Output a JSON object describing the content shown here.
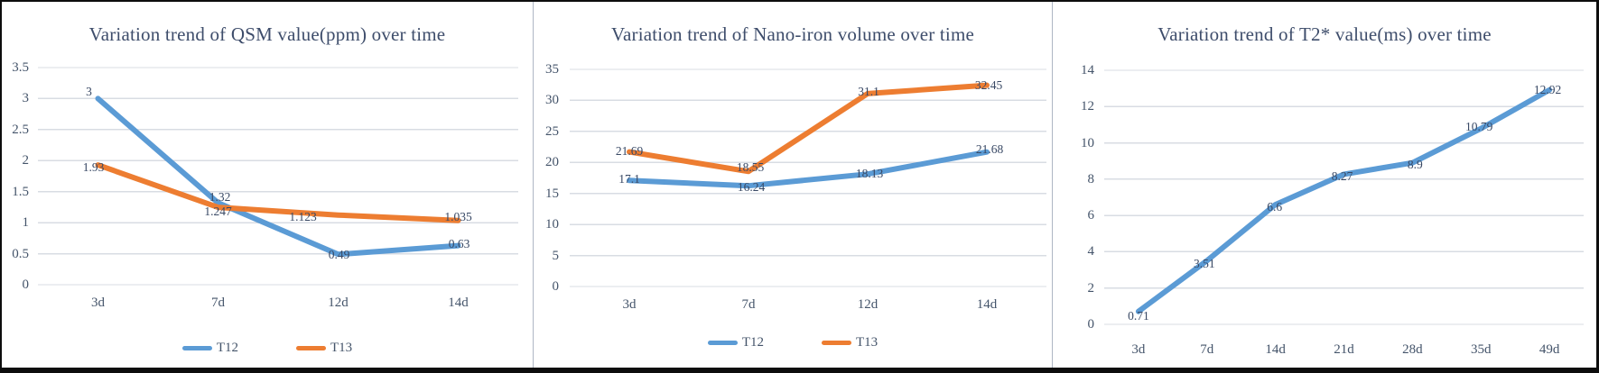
{
  "figure": {
    "background": "#ffffff",
    "border_color": "#0d0d0d",
    "divider_color": "#aeb6c4",
    "gridline_color": "#d8dce3",
    "title_color": "#3E4D6B",
    "axis_text_color": "#44546A",
    "data_label_color": "#394965",
    "series_blue": "#5B9BD5",
    "series_orange": "#ED7D31"
  },
  "chart_data": [
    {
      "type": "line",
      "title": "Variation trend of QSM value(ppm) over time",
      "categories": [
        "3d",
        "7d",
        "12d",
        "14d"
      ],
      "xlabel": "",
      "ylabel": "",
      "ylim": [
        0,
        3.5
      ],
      "y_step": 0.5,
      "y_tick_labels": [
        "0",
        "0.5",
        "1",
        "1.5",
        "2",
        "2.5",
        "3",
        "3.5"
      ],
      "grid": true,
      "legend_position": "bottom",
      "series": [
        {
          "name": "T12",
          "color": "#5B9BD5",
          "values": [
            3,
            1.32,
            0.49,
            0.63
          ],
          "labels": [
            "3",
            "1.32",
            "0.49",
            "0.63"
          ]
        },
        {
          "name": "T13",
          "color": "#ED7D31",
          "values": [
            1.93,
            1.247,
            1.123,
            1.035
          ],
          "labels": [
            "1.93",
            "1.247",
            "1.123",
            "1.035"
          ]
        }
      ]
    },
    {
      "type": "line",
      "title": "Variation trend of Nano-iron volume over time",
      "categories": [
        "3d",
        "7d",
        "12d",
        "14d"
      ],
      "xlabel": "",
      "ylabel": "",
      "ylim": [
        0,
        35
      ],
      "y_step": 5,
      "y_tick_labels": [
        "0",
        "5",
        "10",
        "15",
        "20",
        "25",
        "30",
        "35"
      ],
      "grid": true,
      "legend_position": "bottom",
      "series": [
        {
          "name": "T12",
          "color": "#5B9BD5",
          "values": [
            17.1,
            16.24,
            18.13,
            21.68
          ],
          "labels": [
            "17.1",
            "16.24",
            "18.13",
            "21.68"
          ]
        },
        {
          "name": "T13",
          "color": "#ED7D31",
          "values": [
            21.69,
            18.55,
            31.1,
            32.45
          ],
          "labels": [
            "21.69",
            "18.55",
            "31.1",
            "32.45"
          ]
        }
      ]
    },
    {
      "type": "line",
      "title": "Variation trend of T2* value(ms) over time",
      "categories": [
        "3d",
        "7d",
        "14d",
        "21d",
        "28d",
        "35d",
        "49d"
      ],
      "xlabel": "",
      "ylabel": "",
      "ylim": [
        0,
        14
      ],
      "y_step": 2,
      "y_tick_labels": [
        "0",
        "2",
        "4",
        "6",
        "8",
        "10",
        "12",
        "14"
      ],
      "grid": true,
      "legend_position": "none",
      "series": [
        {
          "name": "T2*",
          "color": "#5B9BD5",
          "values": [
            0.71,
            3.51,
            6.6,
            8.27,
            8.9,
            10.79,
            12.92
          ],
          "labels": [
            "0.71",
            "3.51",
            "6.6",
            "8.27",
            "8.9",
            "10.79",
            "12.92"
          ]
        }
      ]
    }
  ]
}
